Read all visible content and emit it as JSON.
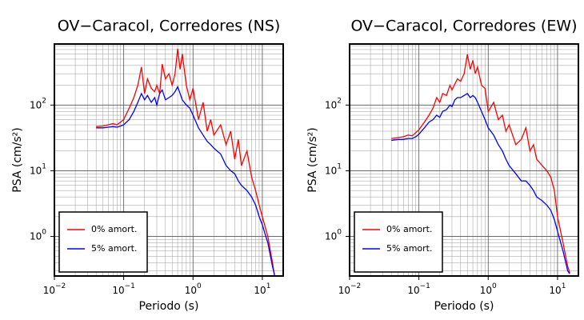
{
  "chart_data": [
    {
      "type": "line",
      "title": "OV−Caracol, Corredores (NS)",
      "x_label": "Periodo (s)",
      "y_label": "PSA (cm/s²)",
      "log_x": true,
      "log_y": true,
      "grid": true,
      "legend": "lower left",
      "xlim": [
        0.01,
        20
      ],
      "ylim": [
        0.25,
        850
      ],
      "xticks": [
        {
          "value": 0.01,
          "label": "10",
          "exponent": "−2"
        },
        {
          "value": 0.1,
          "label": "10",
          "exponent": "−1"
        },
        {
          "value": 1,
          "label": "10",
          "exponent": "0"
        },
        {
          "value": 10,
          "label": "10",
          "exponent": "1"
        }
      ],
      "yticks": [
        {
          "value": 1,
          "label": "10",
          "exponent": "0"
        },
        {
          "value": 10,
          "label": "10",
          "exponent": "1"
        },
        {
          "value": 100,
          "label": "10",
          "exponent": "2"
        }
      ],
      "xminorticks": [
        0.02,
        0.03,
        0.04,
        0.05,
        0.06,
        0.07,
        0.08,
        0.09,
        0.2,
        0.3,
        0.4,
        0.5,
        0.6,
        0.7,
        0.8,
        0.9,
        2,
        3,
        4,
        5,
        6,
        7,
        8,
        9
      ],
      "yminorticks": [
        0.3,
        0.4,
        0.5,
        0.6,
        0.7,
        0.8,
        0.9,
        2,
        3,
        4,
        5,
        6,
        7,
        8,
        9,
        20,
        30,
        40,
        50,
        60,
        70,
        80,
        90,
        200,
        300,
        400,
        500,
        600,
        700,
        800
      ],
      "x": [
        0.04,
        0.05,
        0.06,
        0.07,
        0.08,
        0.09,
        0.1,
        0.12,
        0.14,
        0.16,
        0.18,
        0.2,
        0.22,
        0.25,
        0.28,
        0.3,
        0.33,
        0.36,
        0.4,
        0.45,
        0.5,
        0.55,
        0.6,
        0.65,
        0.7,
        0.8,
        0.9,
        1.0,
        1.2,
        1.4,
        1.6,
        1.8,
        2,
        2.5,
        3,
        3.5,
        4,
        4.5,
        5,
        6,
        7,
        8,
        9,
        10,
        12,
        14,
        15
      ],
      "series": [
        {
          "name": "0% amort.",
          "color": "#ff0000",
          "values": [
            47,
            48,
            50,
            52,
            50,
            55,
            60,
            90,
            130,
            200,
            380,
            150,
            250,
            180,
            160,
            200,
            150,
            420,
            250,
            300,
            200,
            300,
            720,
            350,
            600,
            200,
            120,
            180,
            60,
            110,
            40,
            60,
            35,
            50,
            25,
            40,
            15,
            30,
            12,
            20,
            8,
            5,
            3,
            2,
            1,
            0.4,
            0.25
          ]
        },
        {
          "name": "5% amort.",
          "color": "#0000ff",
          "values": [
            45,
            45,
            46,
            47,
            46,
            48,
            50,
            60,
            80,
            110,
            150,
            120,
            140,
            110,
            130,
            100,
            150,
            170,
            120,
            130,
            140,
            160,
            190,
            150,
            120,
            100,
            90,
            70,
            45,
            35,
            28,
            25,
            22,
            18,
            12,
            10,
            9,
            7,
            6,
            5,
            4,
            3,
            2,
            1.5,
            0.8,
            0.35,
            0.26
          ]
        }
      ]
    },
    {
      "type": "line",
      "title": "OV−Caracol, Corredores (EW)",
      "x_label": "Periodo (s)",
      "y_label": "PSA (cm/s²)",
      "log_x": true,
      "log_y": true,
      "grid": true,
      "legend": "lower left",
      "xlim": [
        0.01,
        20
      ],
      "ylim": [
        0.25,
        850
      ],
      "xticks": [
        {
          "value": 0.01,
          "label": "10",
          "exponent": "−2"
        },
        {
          "value": 0.1,
          "label": "10",
          "exponent": "−1"
        },
        {
          "value": 1,
          "label": "10",
          "exponent": "0"
        },
        {
          "value": 10,
          "label": "10",
          "exponent": "1"
        }
      ],
      "yticks": [
        {
          "value": 1,
          "label": "10",
          "exponent": "0"
        },
        {
          "value": 10,
          "label": "10",
          "exponent": "1"
        },
        {
          "value": 100,
          "label": "10",
          "exponent": "2"
        }
      ],
      "xminorticks": [
        0.02,
        0.03,
        0.04,
        0.05,
        0.06,
        0.07,
        0.08,
        0.09,
        0.2,
        0.3,
        0.4,
        0.5,
        0.6,
        0.7,
        0.8,
        0.9,
        2,
        3,
        4,
        5,
        6,
        7,
        8,
        9
      ],
      "yminorticks": [
        0.3,
        0.4,
        0.5,
        0.6,
        0.7,
        0.8,
        0.9,
        2,
        3,
        4,
        5,
        6,
        7,
        8,
        9,
        20,
        30,
        40,
        50,
        60,
        70,
        80,
        90,
        200,
        300,
        400,
        500,
        600,
        700,
        800
      ],
      "x": [
        0.04,
        0.05,
        0.06,
        0.07,
        0.08,
        0.09,
        0.1,
        0.12,
        0.14,
        0.16,
        0.18,
        0.2,
        0.22,
        0.25,
        0.28,
        0.3,
        0.33,
        0.36,
        0.4,
        0.45,
        0.5,
        0.55,
        0.6,
        0.65,
        0.7,
        0.8,
        0.9,
        1.0,
        1.2,
        1.4,
        1.6,
        1.8,
        2,
        2.5,
        3,
        3.5,
        4,
        4.5,
        5,
        6,
        7,
        8,
        9,
        10,
        12,
        14,
        15
      ],
      "series": [
        {
          "name": "0% amort.",
          "color": "#ff0000",
          "values": [
            31,
            32,
            33,
            35,
            34,
            38,
            42,
            55,
            70,
            90,
            130,
            110,
            150,
            140,
            200,
            170,
            210,
            250,
            230,
            300,
            590,
            350,
            480,
            300,
            380,
            200,
            180,
            80,
            110,
            60,
            70,
            40,
            50,
            25,
            30,
            45,
            20,
            25,
            15,
            12,
            10,
            8,
            5,
            2,
            0.8,
            0.35,
            0.28
          ]
        },
        {
          "name": "5% amort.",
          "color": "#0000ff",
          "values": [
            29,
            30,
            30,
            31,
            31,
            33,
            36,
            45,
            55,
            60,
            70,
            65,
            80,
            85,
            100,
            95,
            120,
            130,
            130,
            140,
            150,
            130,
            140,
            130,
            110,
            80,
            60,
            45,
            35,
            25,
            20,
            15,
            12,
            9,
            7,
            7,
            6,
            5,
            4,
            3.5,
            3,
            2.5,
            1.8,
            1.2,
            0.6,
            0.3,
            0.27
          ]
        }
      ]
    }
  ]
}
